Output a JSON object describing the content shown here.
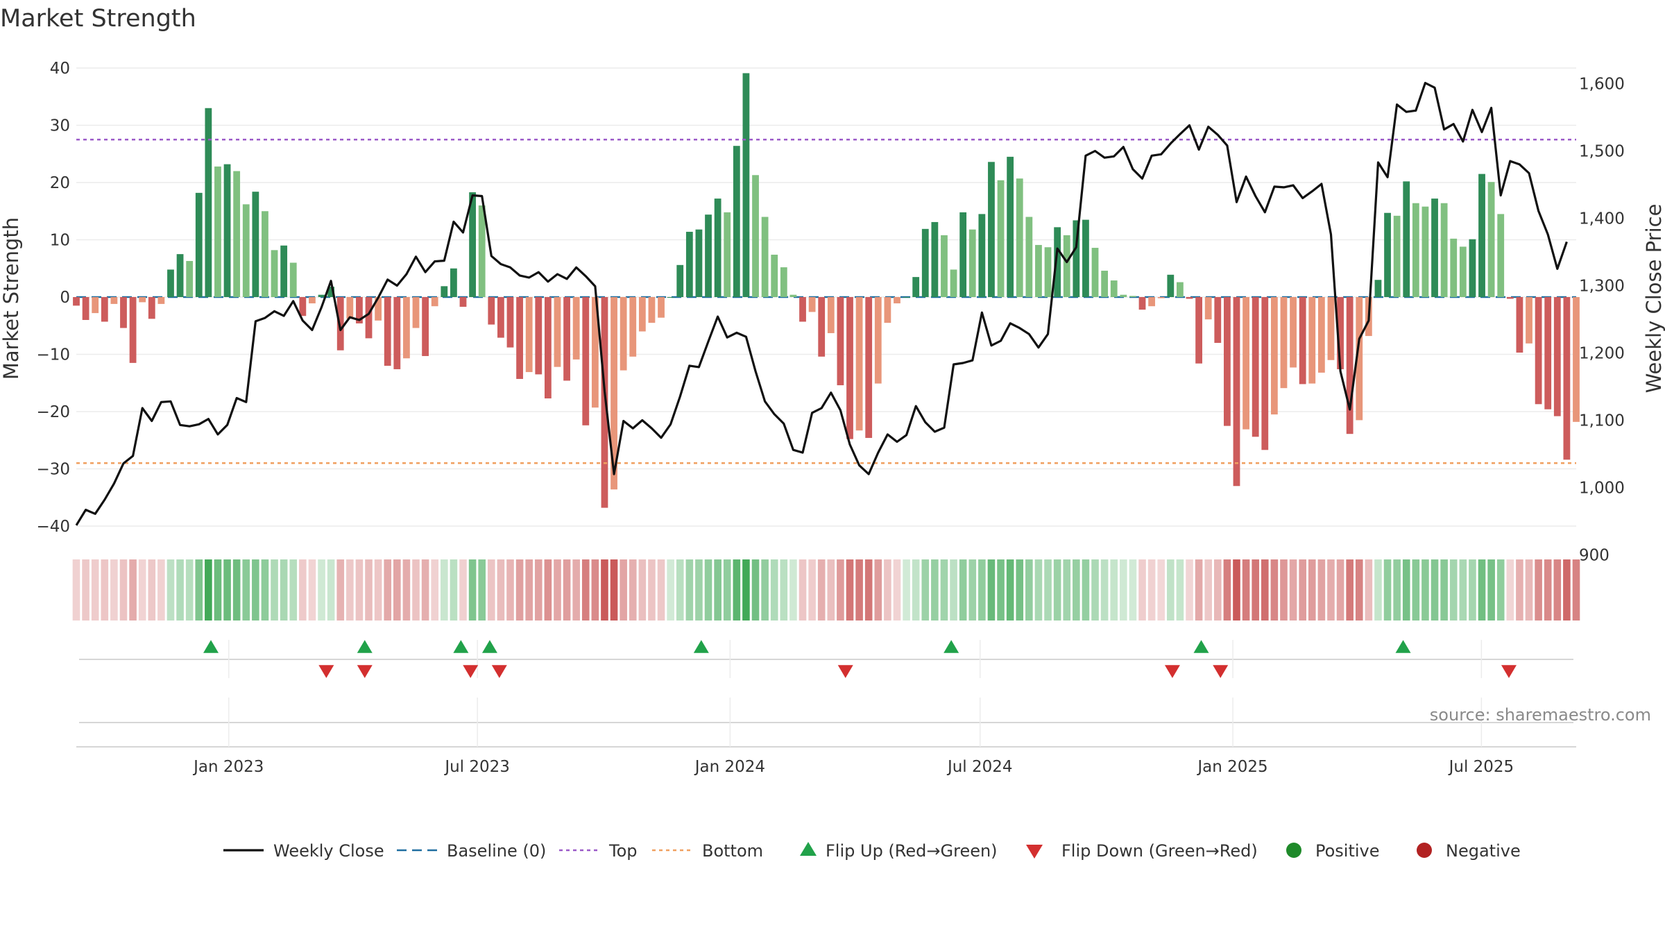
{
  "chart_data": {
    "type": "bar",
    "title": "Market Strength",
    "ylabel": "Market Strength",
    "y2label": "Weekly Close Price",
    "ylim": [
      -40,
      40
    ],
    "y2lim": [
      840,
      1630
    ],
    "yticks": [
      40,
      30,
      20,
      10,
      0,
      -10,
      -20,
      -30,
      -40
    ],
    "y2ticks": [
      1600,
      1500,
      1400,
      1300,
      1200,
      1100,
      1000,
      900
    ],
    "y2tick_labels": [
      "1,600",
      "1,500",
      "1,400",
      "1,300",
      "1,200",
      "1,100",
      "1,000",
      "900"
    ],
    "y_tick_labels": [
      "40",
      "30",
      "20",
      "10",
      "0",
      "−10",
      "−20",
      "−30",
      "−40"
    ],
    "x_start": "2022-09-12",
    "x_end": "2025-09-08",
    "x_ticks": [
      {
        "date": "2023-01-01",
        "label": "Jan 2023"
      },
      {
        "date": "2023-07-01",
        "label": "Jul 2023"
      },
      {
        "date": "2024-01-01",
        "label": "Jan 2024"
      },
      {
        "date": "2024-07-01",
        "label": "Jul 2024"
      },
      {
        "date": "2025-01-01",
        "label": "Jan 2025"
      },
      {
        "date": "2025-07-01",
        "label": "Jul 2025"
      }
    ],
    "top_level": 27.5,
    "bottom_level": -29,
    "grid": true,
    "legend_position": "bottom",
    "source": "source: sharemaestro.com",
    "strength": [
      -1.5,
      -4,
      -2.8,
      -4.3,
      -1.2,
      -5.4,
      -11.5,
      -0.9,
      -3.8,
      -1.2,
      4.8,
      7.5,
      6.3,
      18.2,
      33,
      22.8,
      23.2,
      22,
      16.2,
      18.4,
      15,
      8.2,
      9,
      6,
      -3.3,
      -1.1,
      0.4,
      1.8,
      -9.3,
      -3.8,
      -4.6,
      -7.2,
      -4.1,
      -12,
      -12.6,
      -10.7,
      -5.4,
      -10.3,
      -1.6,
      1.9,
      5,
      -1.7,
      18.3,
      16,
      -4.8,
      -7.1,
      -8.8,
      -14.3,
      -13.1,
      -13.5,
      -17.7,
      -12.2,
      -14.6,
      -10.9,
      -22.4,
      -19.3,
      -36.8,
      -33.6,
      -12.8,
      -10.4,
      -6,
      -4.5,
      -3.6,
      0,
      5.6,
      11.4,
      11.8,
      14.4,
      17.2,
      14.8,
      26.4,
      39.1,
      21.3,
      14,
      7.4,
      5.2,
      0.4,
      -4.3,
      -2.6,
      -10.4,
      -6.3,
      -15.4,
      -24.8,
      -23.3,
      -24.6,
      -15.1,
      -4.5,
      -1.1,
      0,
      3.5,
      11.9,
      13.1,
      10.8,
      4.8,
      14.8,
      11.8,
      14.5,
      23.6,
      20.4,
      24.5,
      20.7,
      14,
      9.1,
      8.7,
      12.2,
      10.8,
      13.4,
      13.5,
      8.6,
      4.6,
      2.9,
      0.4,
      0.2,
      -2.2,
      -1.6,
      -0.2,
      3.9,
      2.6,
      -0.3,
      -11.6,
      -3.9,
      -8,
      -22.5,
      -33,
      -23.1,
      -24.4,
      -26.7,
      -20.5,
      -15.9,
      -12.3,
      -15.2,
      -15.1,
      -13.2,
      -11,
      -12.6,
      -23.9,
      -21.5,
      -6.8,
      3,
      14.7,
      14.2,
      20.2,
      16.4,
      15.8,
      17.2,
      16.4,
      10.2,
      8.8,
      10.1,
      21.5,
      20.1,
      14.5,
      -0.3,
      -9.7,
      -8.1,
      -18.7,
      -19.6,
      -20.8,
      -28.4,
      -21.8
    ],
    "close": [
      944,
      967,
      961,
      982,
      1006,
      1036,
      1047,
      1118,
      1099,
      1127,
      1128,
      1093,
      1091,
      1094,
      1102,
      1079,
      1093,
      1133,
      1127,
      1247,
      1252,
      1262,
      1255,
      1277,
      1248,
      1234,
      1268,
      1307,
      1234,
      1253,
      1249,
      1258,
      1282,
      1309,
      1300,
      1317,
      1343,
      1320,
      1336,
      1337,
      1395,
      1379,
      1434,
      1433,
      1344,
      1332,
      1327,
      1315,
      1312,
      1320,
      1306,
      1317,
      1310,
      1327,
      1314,
      1299,
      1143,
      1020,
      1099,
      1088,
      1100,
      1088,
      1074,
      1094,
      1135,
      1181,
      1179,
      1217,
      1254,
      1223,
      1230,
      1224,
      1173,
      1128,
      1109,
      1095,
      1056,
      1052,
      1111,
      1118,
      1141,
      1115,
      1064,
      1033,
      1020,
      1052,
      1079,
      1068,
      1078,
      1121,
      1097,
      1083,
      1089,
      1183,
      1185,
      1189,
      1260,
      1211,
      1218,
      1244,
      1237,
      1228,
      1208,
      1228,
      1355,
      1335,
      1357,
      1493,
      1500,
      1490,
      1492,
      1506,
      1473,
      1459,
      1493,
      1495,
      1511,
      1525,
      1538,
      1502,
      1536,
      1524,
      1508,
      1424,
      1462,
      1433,
      1409,
      1447,
      1446,
      1449,
      1430,
      1440,
      1451,
      1376,
      1173,
      1116,
      1221,
      1248,
      1483,
      1461,
      1569,
      1558,
      1560,
      1601,
      1594,
      1532,
      1540,
      1514,
      1561,
      1528,
      1564,
      1434,
      1485,
      1480,
      1467,
      1411,
      1376,
      1325,
      1365
    ],
    "flip_up_dates": [
      "2022-12-19",
      "2023-04-10",
      "2023-06-19",
      "2023-07-10",
      "2023-12-11",
      "2024-06-10",
      "2024-12-09",
      "2025-05-05"
    ],
    "flip_down_dates": [
      "2023-03-13",
      "2023-04-10",
      "2023-06-26",
      "2023-07-17",
      "2024-03-25",
      "2024-11-18",
      "2024-12-23",
      "2025-07-21"
    ]
  },
  "legend": {
    "items": [
      {
        "label": "Weekly Close",
        "kind": "line",
        "color": "#111111"
      },
      {
        "label": "Baseline (0)",
        "kind": "dash",
        "color": "#1f6ea0"
      },
      {
        "label": "Top",
        "kind": "dot",
        "color": "#9b59c8"
      },
      {
        "label": "Bottom",
        "kind": "dot",
        "color": "#f0a060"
      },
      {
        "label": "Flip Up (Red→Green)",
        "kind": "tri-up",
        "color": "#21a24a"
      },
      {
        "label": "Flip Down (Green→Red)",
        "kind": "tri-down",
        "color": "#d32f2f"
      },
      {
        "label": "Positive",
        "kind": "circle",
        "color": "#1f8a2a"
      },
      {
        "label": "Negative",
        "kind": "circle",
        "color": "#b22222"
      }
    ]
  },
  "colors": {
    "pos_strong": "#2e8b57",
    "pos_weak": "#80c080",
    "neg_strong": "#cd5c5c",
    "neg_weak": "#e8967a",
    "line": "#111111",
    "baseline": "#1f6ea0",
    "top": "#9b59c8",
    "bottom": "#f0a060",
    "flip_up": "#21a24a",
    "flip_down": "#d32f2f"
  }
}
